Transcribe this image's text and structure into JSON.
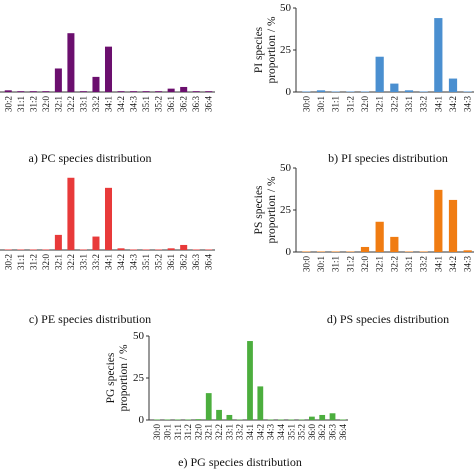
{
  "chart_data": [
    {
      "type": "bar",
      "title": "a) PC species distribution",
      "color": "#6b0f6e",
      "categories": [
        "30:2",
        "31:1",
        "31:2",
        "32:0",
        "32:1",
        "32:2",
        "33:1",
        "33:2",
        "34:1",
        "34:2",
        "34:3",
        "35:1",
        "35:2",
        "36:1",
        "36:2",
        "36:3",
        "36:4"
      ],
      "values": [
        1,
        0.5,
        0.5,
        0.5,
        14,
        35,
        0.5,
        9,
        27,
        0.5,
        0.5,
        0.5,
        0.5,
        2,
        3,
        0.5,
        0.5
      ],
      "ylim": [
        0,
        50
      ]
    },
    {
      "type": "bar",
      "title": "b) PI species distribution",
      "color": "#4a8fd0",
      "ylabel": [
        "PI species",
        "proportion / %"
      ],
      "categories": [
        "30:0",
        "30:1",
        "31:1",
        "31:2",
        "32:0",
        "32:1",
        "32:2",
        "33:1",
        "33:2",
        "34:1",
        "34:2",
        "34:3"
      ],
      "values": [
        0.3,
        1,
        0.3,
        0.3,
        0.3,
        21,
        5,
        1,
        0.3,
        44,
        8,
        0.3
      ],
      "ylim": [
        0,
        50
      ],
      "yticks": [
        0,
        25,
        50
      ]
    },
    {
      "type": "bar",
      "title": "c) PE species distribution",
      "color": "#e83a3a",
      "categories": [
        "30:2",
        "31:1",
        "31:2",
        "32:0",
        "32:1",
        "32:2",
        "33:1",
        "33:2",
        "34:1",
        "34:2",
        "34:3",
        "35:1",
        "35:2",
        "36:1",
        "36:2",
        "36:3",
        "36:4"
      ],
      "values": [
        0.3,
        0.3,
        0.3,
        0.3,
        9,
        43,
        0.3,
        8,
        37,
        1,
        0.3,
        0.3,
        0.3,
        1,
        3,
        0.3,
        0.3
      ],
      "ylim": [
        0,
        50
      ]
    },
    {
      "type": "bar",
      "title": "d) PS species distribution",
      "color": "#f07c12",
      "ylabel": [
        "PS species",
        "proportion / %"
      ],
      "categories": [
        "30:0",
        "30:1",
        "31:1",
        "31:2",
        "32:0",
        "32:1",
        "32:2",
        "33:1",
        "33:2",
        "34:1",
        "34:2",
        "34:3"
      ],
      "values": [
        0.3,
        0.3,
        0.3,
        0.3,
        3,
        18,
        9,
        0.3,
        0.3,
        37,
        31,
        1
      ],
      "ylim": [
        0,
        50
      ],
      "yticks": [
        0,
        25,
        50
      ]
    },
    {
      "type": "bar",
      "title": "e) PG species distribution",
      "color": "#4cae3e",
      "ylabel": [
        "PG species",
        "proportion / %"
      ],
      "categories": [
        "30:0",
        "30:1",
        "31:1",
        "31:2",
        "32:0",
        "32:1",
        "32:2",
        "33:1",
        "33:2",
        "34:1",
        "34:2",
        "34:3",
        "34:4",
        "35:1",
        "35:2",
        "36:0",
        "36:2",
        "36:3",
        "36:4"
      ],
      "values": [
        0.3,
        0.3,
        0.3,
        0.3,
        0.5,
        16,
        6,
        3,
        0.3,
        47,
        20,
        0.3,
        0.3,
        0.3,
        0.3,
        2,
        3,
        4,
        0.3
      ],
      "ylim": [
        0,
        50
      ],
      "yticks": [
        0,
        25,
        50
      ]
    }
  ]
}
